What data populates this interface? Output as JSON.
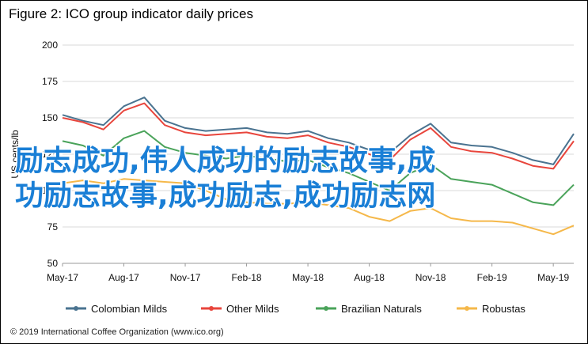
{
  "title": "Figure 2: ICO group indicator daily prices",
  "copyright": "© 2019 International Coffee Organization (www.ico.org)",
  "overlay_text": [
    "励志成功,伟人成功的励志故事,成",
    "功励志故事,成功励志,成功励志网"
  ],
  "chart_data": {
    "type": "line",
    "title": "ICO group indicator daily prices",
    "ylabel": "US cents/lb",
    "ylim": [
      50,
      200
    ],
    "yticks": [
      50,
      75,
      100,
      125,
      150,
      175,
      200
    ],
    "x_range": [
      "2017-05",
      "2019-06"
    ],
    "x_tick_labels": [
      "May-17",
      "Aug-17",
      "Nov-17",
      "Feb-18",
      "May-18",
      "Aug-18",
      "Nov-18",
      "Feb-19",
      "May-19"
    ],
    "grid": "horizontal",
    "legend_position": "bottom",
    "x": [
      "May-17",
      "Jun-17",
      "Jul-17",
      "Aug-17",
      "Sep-17",
      "Oct-17",
      "Nov-17",
      "Dec-17",
      "Jan-18",
      "Feb-18",
      "Mar-18",
      "Apr-18",
      "May-18",
      "Jun-18",
      "Jul-18",
      "Aug-18",
      "Sep-18",
      "Oct-18",
      "Nov-18",
      "Dec-18",
      "Jan-19",
      "Feb-19",
      "Mar-19",
      "Apr-19",
      "May-19",
      "Jun-19"
    ],
    "series": [
      {
        "name": "Colombian Milds",
        "color": "#4a7390",
        "values": [
          152,
          148,
          145,
          158,
          164,
          148,
          143,
          141,
          142,
          143,
          140,
          139,
          141,
          136,
          133,
          128,
          126,
          138,
          146,
          133,
          131,
          130,
          126,
          121,
          118,
          139
        ]
      },
      {
        "name": "Other Milds",
        "color": "#e8453c",
        "values": [
          150,
          147,
          142,
          155,
          160,
          145,
          140,
          138,
          139,
          140,
          137,
          136,
          138,
          133,
          130,
          125,
          121,
          135,
          143,
          130,
          127,
          126,
          122,
          117,
          115,
          134
        ]
      },
      {
        "name": "Brazilian Naturals",
        "color": "#4aa35a",
        "values": [
          134,
          131,
          124,
          136,
          141,
          130,
          126,
          124,
          122,
          124,
          122,
          120,
          121,
          116,
          112,
          106,
          100,
          112,
          118,
          108,
          106,
          104,
          98,
          92,
          90,
          104
        ]
      },
      {
        "name": "Robustas",
        "color": "#f5b84a",
        "values": [
          105,
          107,
          105,
          108,
          107,
          106,
          105,
          100,
          94,
          92,
          91,
          91,
          92,
          90,
          88,
          82,
          79,
          86,
          88,
          81,
          79,
          79,
          78,
          74,
          70,
          76
        ]
      }
    ]
  }
}
